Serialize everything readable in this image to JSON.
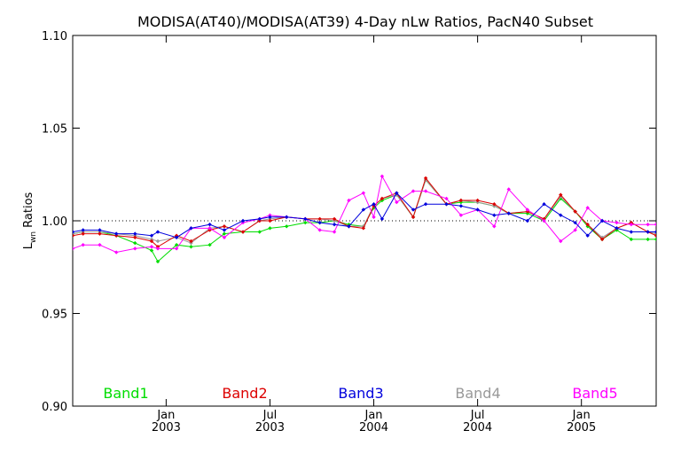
{
  "chart_data": {
    "type": "line",
    "title": "MODISA(AT40)/MODISA(AT39) 4-Day nLw Ratios, PacN40 Subset",
    "ylabel_main": "L",
    "ylabel_sub": "wn",
    "ylabel_rest": " Ratios",
    "ylim": [
      0.9,
      1.1
    ],
    "y_ticks": [
      {
        "value": 0.9,
        "label": "0.90"
      },
      {
        "value": 0.95,
        "label": "0.95"
      },
      {
        "value": 1.0,
        "label": "1.00"
      },
      {
        "value": 1.05,
        "label": "1.05"
      },
      {
        "value": 1.1,
        "label": "1.10"
      }
    ],
    "xlim": [
      2002.55,
      2005.36
    ],
    "x_ticks": [
      {
        "value": 2003.0,
        "month": "Jan",
        "year": "2003"
      },
      {
        "value": 2003.5,
        "month": "Jul",
        "year": "2003"
      },
      {
        "value": 2004.0,
        "month": "Jan",
        "year": "2004"
      },
      {
        "value": 2004.5,
        "month": "Jul",
        "year": "2004"
      },
      {
        "value": 2005.0,
        "month": "Jan",
        "year": "2005"
      }
    ],
    "reference_line": 1.0,
    "series": [
      {
        "name": "Band1",
        "color": "#00dd00",
        "x": [
          2002.55,
          2002.6,
          2002.68,
          2002.76,
          2002.85,
          2002.93,
          2002.96,
          2003.05,
          2003.12,
          2003.21,
          2003.28,
          2003.37,
          2003.45,
          2003.5,
          2003.58,
          2003.67,
          2003.74,
          2003.81,
          2003.88,
          2003.95,
          2004.0,
          2004.04,
          2004.11,
          2004.19,
          2004.25,
          2004.35,
          2004.42,
          2004.5,
          2004.58,
          2004.65,
          2004.74,
          2004.82,
          2004.9,
          2004.97,
          2005.03,
          2005.1,
          2005.17,
          2005.24,
          2005.32,
          2005.36
        ],
        "y": [
          0.993,
          0.994,
          0.994,
          0.992,
          0.988,
          0.984,
          0.978,
          0.987,
          0.986,
          0.987,
          0.993,
          0.994,
          0.994,
          0.996,
          0.997,
          0.999,
          0.999,
          1.0,
          0.998,
          0.997,
          1.007,
          1.011,
          1.014,
          1.002,
          1.022,
          1.009,
          1.01,
          1.01,
          1.008,
          1.004,
          1.004,
          1.0,
          1.012,
          1.005,
          0.997,
          0.99,
          0.995,
          0.99,
          0.99,
          0.99
        ]
      },
      {
        "name": "Band2",
        "color": "#dd0000",
        "x": [
          2002.55,
          2002.6,
          2002.68,
          2002.76,
          2002.85,
          2002.93,
          2002.96,
          2003.05,
          2003.12,
          2003.21,
          2003.28,
          2003.37,
          2003.45,
          2003.5,
          2003.58,
          2003.67,
          2003.74,
          2003.81,
          2003.88,
          2003.95,
          2004.0,
          2004.04,
          2004.11,
          2004.19,
          2004.25,
          2004.35,
          2004.42,
          2004.5,
          2004.58,
          2004.65,
          2004.74,
          2004.82,
          2004.9,
          2004.97,
          2005.03,
          2005.1,
          2005.17,
          2005.24,
          2005.32,
          2005.36
        ],
        "y": [
          0.992,
          0.993,
          0.993,
          0.992,
          0.991,
          0.989,
          0.986,
          0.992,
          0.989,
          0.995,
          0.997,
          0.994,
          1.0,
          1.0,
          1.002,
          1.001,
          1.001,
          1.001,
          0.997,
          0.996,
          1.008,
          1.012,
          1.015,
          1.002,
          1.023,
          1.009,
          1.011,
          1.011,
          1.009,
          1.004,
          1.005,
          1.001,
          1.014,
          1.005,
          0.998,
          0.99,
          0.996,
          0.999,
          0.994,
          0.992
        ]
      },
      {
        "name": "Band3",
        "color": "#0000dd",
        "x": [
          2002.55,
          2002.6,
          2002.68,
          2002.76,
          2002.85,
          2002.93,
          2002.96,
          2003.05,
          2003.12,
          2003.21,
          2003.28,
          2003.37,
          2003.45,
          2003.5,
          2003.58,
          2003.67,
          2003.74,
          2003.81,
          2003.88,
          2003.95,
          2004.0,
          2004.04,
          2004.11,
          2004.19,
          2004.25,
          2004.35,
          2004.42,
          2004.5,
          2004.58,
          2004.65,
          2004.74,
          2004.82,
          2004.9,
          2004.97,
          2005.03,
          2005.1,
          2005.17,
          2005.24,
          2005.32,
          2005.36
        ],
        "y": [
          0.994,
          0.995,
          0.995,
          0.993,
          0.993,
          0.992,
          0.994,
          0.991,
          0.996,
          0.998,
          0.995,
          1.0,
          1.001,
          1.002,
          1.002,
          1.001,
          0.999,
          0.998,
          0.997,
          1.006,
          1.009,
          1.001,
          1.015,
          1.006,
          1.009,
          1.009,
          1.008,
          1.006,
          1.003,
          1.004,
          1.0,
          1.009,
          1.003,
          0.999,
          0.992,
          1.0,
          0.996,
          0.994,
          0.994,
          0.994
        ]
      },
      {
        "name": "Band4",
        "color": "#999999",
        "x": [
          2002.55,
          2002.6,
          2002.68,
          2002.76,
          2002.85,
          2002.93,
          2002.96,
          2003.05,
          2003.12,
          2003.21,
          2003.28,
          2003.37,
          2003.45,
          2003.5,
          2003.58,
          2003.67,
          2003.74,
          2003.81,
          2003.88,
          2003.95,
          2004.0,
          2004.04,
          2004.11,
          2004.19,
          2004.25,
          2004.35,
          2004.42,
          2004.5,
          2004.58,
          2004.65,
          2004.74,
          2004.82,
          2004.9,
          2004.97,
          2005.03,
          2005.1,
          2005.17,
          2005.24,
          2005.32,
          2005.36
        ],
        "y": [
          0.993,
          0.994,
          0.994,
          0.993,
          0.992,
          0.99,
          0.989,
          0.991,
          0.988,
          0.996,
          0.997,
          0.994,
          1.0,
          1.001,
          1.002,
          1.001,
          1.001,
          1.0,
          0.997,
          0.997,
          1.008,
          1.012,
          1.014,
          1.002,
          1.022,
          1.009,
          1.011,
          1.01,
          1.008,
          1.004,
          1.005,
          1.001,
          1.013,
          1.005,
          0.998,
          0.991,
          0.996,
          0.999,
          0.994,
          0.993
        ]
      },
      {
        "name": "Band5",
        "color": "#ff00ff",
        "x": [
          2002.55,
          2002.6,
          2002.68,
          2002.76,
          2002.85,
          2002.93,
          2002.96,
          2003.05,
          2003.12,
          2003.21,
          2003.28,
          2003.37,
          2003.45,
          2003.5,
          2003.58,
          2003.67,
          2003.74,
          2003.81,
          2003.88,
          2003.95,
          2004.0,
          2004.04,
          2004.11,
          2004.19,
          2004.25,
          2004.35,
          2004.42,
          2004.5,
          2004.58,
          2004.65,
          2004.74,
          2004.82,
          2004.9,
          2004.97,
          2005.03,
          2005.1,
          2005.17,
          2005.24,
          2005.32,
          2005.36
        ],
        "y": [
          0.985,
          0.987,
          0.987,
          0.983,
          0.985,
          0.986,
          0.985,
          0.985,
          0.996,
          0.996,
          0.991,
          0.999,
          1.001,
          1.003,
          1.002,
          1.001,
          0.995,
          0.994,
          1.011,
          1.015,
          1.002,
          1.024,
          1.01,
          1.016,
          1.016,
          1.012,
          1.003,
          1.006,
          0.997,
          1.017,
          1.006,
          1.0,
          0.989,
          0.995,
          1.007,
          1.0,
          0.999,
          0.998,
          0.998,
          0.998
        ]
      }
    ]
  }
}
